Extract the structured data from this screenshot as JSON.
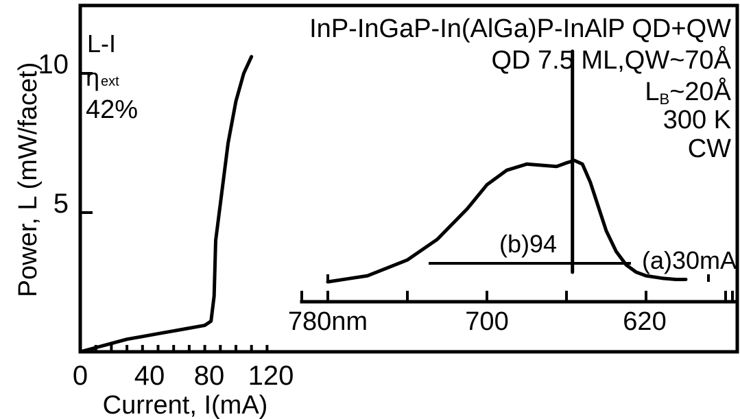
{
  "chart_data": [
    {
      "type": "line",
      "name": "L-I characteristic",
      "xlabel": "Current, I(mA)",
      "ylabel": "Power, L (mW/facet)",
      "xlim": [
        0,
        130
      ],
      "ylim": [
        0,
        12
      ],
      "x_ticks": [
        "0",
        "40",
        "80",
        "120"
      ],
      "y_ticks": [
        "5",
        "10"
      ],
      "annotation": {
        "line1": "L-I",
        "eta": "η",
        "eta_sub": "ext",
        "value": "42%"
      },
      "series": [
        {
          "x": [
            0,
            10,
            20,
            30,
            40,
            50,
            60,
            70,
            80,
            84,
            86,
            87,
            95,
            100,
            105,
            110
          ],
          "y": [
            0.0,
            0.15,
            0.3,
            0.45,
            0.55,
            0.65,
            0.75,
            0.85,
            0.95,
            1.1,
            2.0,
            4.0,
            7.5,
            9.0,
            10.0,
            10.6
          ]
        }
      ]
    },
    {
      "type": "line",
      "name": "Emission spectrum",
      "x_reversed": true,
      "xlim": [
        800,
        590
      ],
      "x_ticks": [
        "780nm",
        "700",
        "620"
      ],
      "labels": {
        "a": "(a)30mA",
        "b": "(b)94"
      },
      "series": [
        {
          "name": "(a)30mA",
          "x": [
            780,
            760,
            740,
            725,
            710,
            700,
            690,
            680,
            672,
            665,
            660,
            656,
            652,
            648,
            644,
            640,
            635,
            630,
            625,
            620,
            612,
            605,
            600
          ],
          "y": [
            0.0,
            0.05,
            0.18,
            0.35,
            0.6,
            0.8,
            0.92,
            0.97,
            0.96,
            0.95,
            0.98,
            1.0,
            0.97,
            0.82,
            0.62,
            0.42,
            0.25,
            0.14,
            0.08,
            0.05,
            0.03,
            0.02,
            0.02
          ]
        },
        {
          "name": "(b)94",
          "type": "spike",
          "x": 657,
          "y": 1.9
        }
      ]
    }
  ],
  "legend": {
    "line1": "InP-InGaP-In(AlGa)P-InAlP QD+QW",
    "line2": "QD 7.5 ML,QW~70Å",
    "line3_main": "L",
    "line3_sub": "B",
    "line3_rest": "~20Å",
    "line4": "300 K",
    "line5": "CW"
  }
}
